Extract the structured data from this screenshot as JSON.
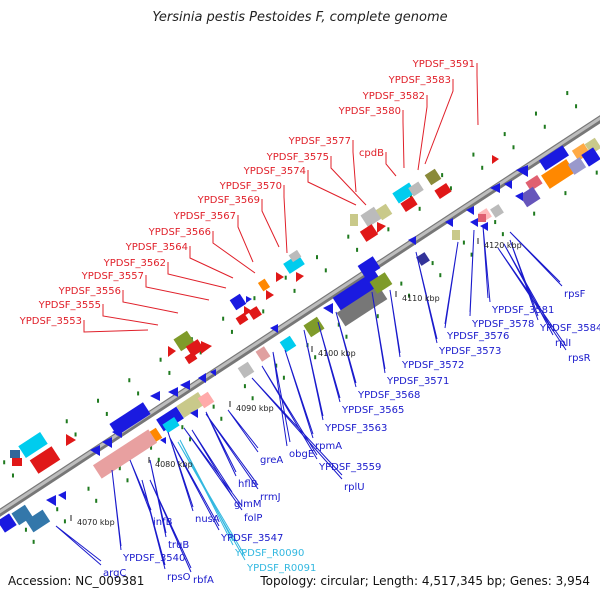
{
  "title": "Yersinia pestis Pestoides F, complete genome",
  "accession": "Accession: NC_009381",
  "topology": "Topology: circular; Length: 4,517,345 bp; Genes: 3,954",
  "colors": {
    "upper_labels": "#e0202a",
    "lower_labels": "#1a1acc",
    "rna_labels": "#33b8e0",
    "backbone": "#8a8a8a",
    "tick_marks": "#1f7a1f"
  },
  "ticks": [
    "4070 kbp",
    "4080 kbp",
    "4090 kbp",
    "4100 kbp",
    "4110 kbp",
    "4120 kbp"
  ],
  "upper_labels": [
    "YPDSF_3591",
    "YPDSF_3583",
    "YPDSF_3582",
    "YPDSF_3580",
    "cpdB",
    "YPDSF_3577",
    "YPDSF_3575",
    "YPDSF_3574",
    "YPDSF_3570",
    "YPDSF_3569",
    "YPDSF_3567",
    "YPDSF_3566",
    "YPDSF_3564",
    "YPDSF_3562",
    "YPDSF_3557",
    "YPDSF_3556",
    "YPDSF_3555",
    "YPDSF_3553"
  ],
  "lower_labels": [
    "rpsF",
    "YPDSF_3581",
    "YPDSF_3584",
    "YPDSF_3578",
    "rplI",
    "rpsR",
    "YPDSF_3576",
    "YPDSF_3573",
    "YPDSF_3572",
    "YPDSF_3571",
    "YPDSF_3568",
    "YPDSF_3565",
    "YPDSF_3563",
    "rpmA",
    "obgE",
    "YPDSF_3559",
    "greA",
    "rplU",
    "hflB",
    "rrmJ",
    "glmM",
    "folP",
    "nusA",
    "infB",
    "YPDSF_3547",
    "truB",
    "YPDSF_3540",
    "rpsO",
    "rbfA",
    "argC"
  ],
  "rna_labels": [
    "YPDSF_R0090",
    "YPDSF_R0091"
  ]
}
